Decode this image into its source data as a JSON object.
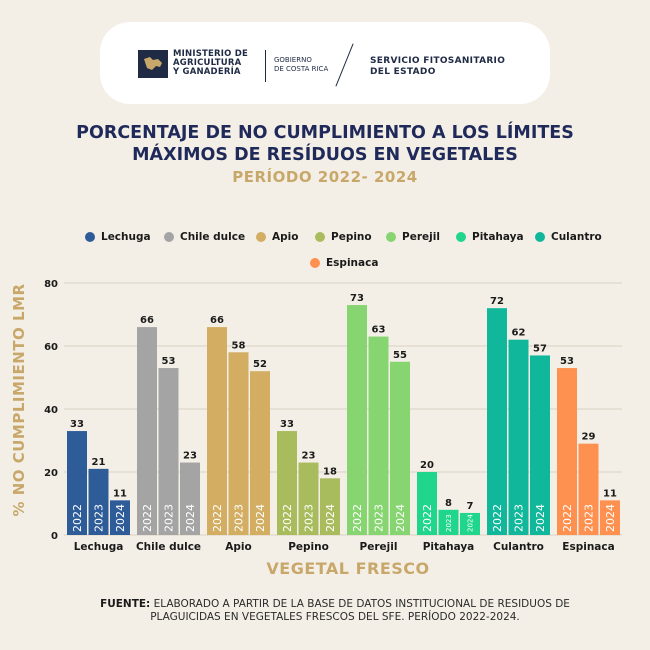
{
  "header": {
    "ministry_lines": [
      "MINISTERIO DE",
      "AGRICULTURA",
      "Y GANADERÍA"
    ],
    "government_lines": [
      "GOBIERNO",
      "DE COSTA RICA"
    ],
    "service_lines": [
      "SERVICIO FITOSANITARIO",
      "DEL ESTADO"
    ]
  },
  "title_line1": "PORCENTAJE DE NO CUMPLIMIENTO A LOS LÍMITES",
  "title_line2": "MÁXIMOS DE RESÍDUOS EN VEGETALES",
  "period": "PERÍODO 2022- 2024",
  "source": {
    "label": "FUENTE:",
    "text": "ELABORADO A PARTIR DE LA BASE DE DATOS INSTITUCIONAL DE RESIDUOS DE PLAGUICIDAS EN VEGETALES FRESCOS DEL SFE. PERÍODO 2022-2024."
  },
  "chart_data": {
    "type": "bar",
    "title": "PORCENTAJE DE NO CUMPLIMIENTO A LOS LÍMITES MÁXIMOS DE RESÍDUOS EN VEGETALES",
    "subtitle": "PERÍODO 2022- 2024",
    "xlabel": "VEGETAL FRESCO",
    "ylabel": "% NO CUMPLIMIENTO LMR",
    "ylim": [
      0,
      80
    ],
    "yticks": [
      0,
      20,
      40,
      60,
      80
    ],
    "grid": true,
    "legend_position": "top",
    "years": [
      "2022",
      "2023",
      "2024"
    ],
    "categories": [
      {
        "name": "Lechuga",
        "color": "#2e5c99",
        "values": [
          33,
          21,
          11
        ]
      },
      {
        "name": "Chile dulce",
        "color": "#a4a4a4",
        "values": [
          66,
          53,
          23
        ]
      },
      {
        "name": "Apio",
        "color": "#d2ad62",
        "values": [
          66,
          58,
          52
        ]
      },
      {
        "name": "Pepino",
        "color": "#a9bc5d",
        "values": [
          33,
          23,
          18
        ]
      },
      {
        "name": "Perejil",
        "color": "#86d570",
        "values": [
          73,
          63,
          55
        ]
      },
      {
        "name": "Pitahaya",
        "color": "#1fd68c",
        "values": [
          20,
          8,
          7
        ]
      },
      {
        "name": "Culantro",
        "color": "#10b79a",
        "values": [
          72,
          62,
          57
        ]
      },
      {
        "name": "Espinaca",
        "color": "#ff9150",
        "values": [
          53,
          29,
          11
        ]
      }
    ]
  }
}
